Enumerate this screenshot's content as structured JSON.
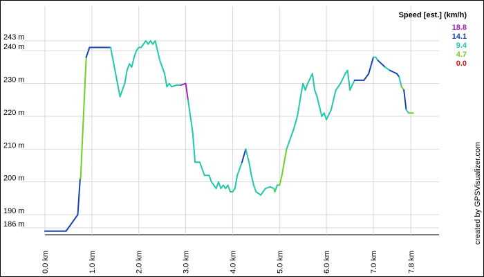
{
  "chart_data": {
    "type": "line",
    "title": "",
    "xlabel": "",
    "ylabel": "",
    "x_unit": "km",
    "y_unit": "m",
    "xlim": [
      0,
      8.4
    ],
    "ylim": [
      186,
      243
    ],
    "x_ticks": [
      {
        "value": 0.0,
        "label": "0.0 km"
      },
      {
        "value": 1.0,
        "label": "1.0 km"
      },
      {
        "value": 2.0,
        "label": "2.0 km"
      },
      {
        "value": 3.0,
        "label": "3.0 km"
      },
      {
        "value": 4.0,
        "label": "4.0 km"
      },
      {
        "value": 5.0,
        "label": "5.0 km"
      },
      {
        "value": 6.0,
        "label": "6.0 km"
      },
      {
        "value": 7.0,
        "label": "7.0 km"
      },
      {
        "value": 7.8,
        "label": "7.8 km"
      }
    ],
    "y_ticks": [
      {
        "value": 186,
        "label": "186 m"
      },
      {
        "value": 190,
        "label": "190 m"
      },
      {
        "value": 200,
        "label": "200 m"
      },
      {
        "value": 210,
        "label": "210 m"
      },
      {
        "value": 220,
        "label": "220 m"
      },
      {
        "value": 230,
        "label": "230 m"
      },
      {
        "value": 240,
        "label": "240 m"
      },
      {
        "value": 243,
        "label": "243 m"
      }
    ],
    "grid": true,
    "legend": {
      "title": "Speed [est.] (km/h)",
      "placement": "top-right",
      "entries": [
        {
          "label": "18.8",
          "color": "#a020c0"
        },
        {
          "label": "14.1",
          "color": "#1a40b0"
        },
        {
          "label": "9.4",
          "color": "#20c8a8"
        },
        {
          "label": "4.7",
          "color": "#70d020"
        },
        {
          "label": "0.0",
          "color": "#e01010"
        }
      ]
    },
    "credit": "created by GPSVisualizer.com",
    "series": [
      {
        "points": [
          [
            0.0,
            185,
            "#20c8a8"
          ],
          [
            0.45,
            185,
            "#1a40b0"
          ],
          [
            0.7,
            190,
            "#1a40b0"
          ],
          [
            0.75,
            201,
            "#1a40b0"
          ],
          [
            0.76,
            201,
            "#70d020"
          ],
          [
            0.88,
            238,
            "#70d020"
          ],
          [
            0.95,
            241,
            "#1a40b0"
          ],
          [
            1.1,
            241,
            "#1a40b0"
          ],
          [
            1.4,
            241,
            "#1a40b0"
          ],
          [
            1.6,
            226,
            "#20c8a8"
          ],
          [
            1.7,
            230,
            "#20c8a8"
          ],
          [
            1.75,
            234,
            "#20c8a8"
          ],
          [
            1.8,
            236,
            "#20c8a8"
          ],
          [
            1.85,
            235,
            "#20c8a8"
          ],
          [
            1.9,
            238,
            "#20c8a8"
          ],
          [
            1.95,
            240,
            "#20c8a8"
          ],
          [
            2.0,
            241,
            "#20c8a8"
          ],
          [
            2.05,
            241,
            "#20c8a8"
          ],
          [
            2.1,
            242,
            "#20c8a8"
          ],
          [
            2.15,
            243,
            "#20c8a8"
          ],
          [
            2.2,
            242,
            "#20c8a8"
          ],
          [
            2.25,
            243,
            "#20c8a8"
          ],
          [
            2.3,
            242,
            "#20c8a8"
          ],
          [
            2.35,
            243,
            "#20c8a8"
          ],
          [
            2.4,
            240,
            "#20c8a8"
          ],
          [
            2.45,
            237,
            "#20c8a8"
          ],
          [
            2.5,
            235,
            "#20c8a8"
          ],
          [
            2.55,
            233,
            "#20c8a8"
          ],
          [
            2.6,
            229,
            "#20c8a8"
          ],
          [
            2.65,
            230,
            "#20c8a8"
          ],
          [
            2.7,
            229,
            "#20c8a8"
          ],
          [
            2.8,
            229.5,
            "#20c8a8"
          ],
          [
            2.9,
            229.5,
            "#20c8a8"
          ],
          [
            3.0,
            230,
            "#a020c0"
          ],
          [
            3.05,
            225,
            "#a020c0"
          ],
          [
            3.15,
            215,
            "#20c8a8"
          ],
          [
            3.2,
            206,
            "#20c8a8"
          ],
          [
            3.3,
            206,
            "#20c8a8"
          ],
          [
            3.4,
            202,
            "#20c8a8"
          ],
          [
            3.5,
            202,
            "#20c8a8"
          ],
          [
            3.55,
            200,
            "#20c8a8"
          ],
          [
            3.6,
            199,
            "#20c8a8"
          ],
          [
            3.65,
            198,
            "#20c8a8"
          ],
          [
            3.7,
            200,
            "#20c8a8"
          ],
          [
            3.75,
            198,
            "#20c8a8"
          ],
          [
            3.8,
            199,
            "#20c8a8"
          ],
          [
            3.85,
            198,
            "#20c8a8"
          ],
          [
            3.9,
            199,
            "#20c8a8"
          ],
          [
            3.95,
            197,
            "#20c8a8"
          ],
          [
            4.0,
            197,
            "#20c8a8"
          ],
          [
            4.05,
            198,
            "#20c8a8"
          ],
          [
            4.1,
            202,
            "#20c8a8"
          ],
          [
            4.2,
            206,
            "#20c8a8"
          ],
          [
            4.28,
            210,
            "#1a40b0"
          ],
          [
            4.35,
            206,
            "#20c8a8"
          ],
          [
            4.4,
            202,
            "#20c8a8"
          ],
          [
            4.45,
            199,
            "#20c8a8"
          ],
          [
            4.5,
            197,
            "#20c8a8"
          ],
          [
            4.6,
            196,
            "#20c8a8"
          ],
          [
            4.7,
            198,
            "#20c8a8"
          ],
          [
            4.8,
            198.5,
            "#20c8a8"
          ],
          [
            4.88,
            198,
            "#20c8a8"
          ],
          [
            4.9,
            197,
            "#70d020"
          ],
          [
            4.95,
            199,
            "#20c8a8"
          ],
          [
            5.0,
            199,
            "#20c8a8"
          ],
          [
            5.05,
            202,
            "#70d020"
          ],
          [
            5.15,
            210,
            "#70d020"
          ],
          [
            5.2,
            212,
            "#20c8a8"
          ],
          [
            5.3,
            216,
            "#20c8a8"
          ],
          [
            5.38,
            220,
            "#20c8a8"
          ],
          [
            5.45,
            226,
            "#20c8a8"
          ],
          [
            5.5,
            230,
            "#20c8a8"
          ],
          [
            5.55,
            228,
            "#20c8a8"
          ],
          [
            5.6,
            230,
            "#20c8a8"
          ],
          [
            5.7,
            233,
            "#20c8a8"
          ],
          [
            5.75,
            228,
            "#20c8a8"
          ],
          [
            5.8,
            226,
            "#20c8a8"
          ],
          [
            5.85,
            223,
            "#20c8a8"
          ],
          [
            5.9,
            220,
            "#20c8a8"
          ],
          [
            5.95,
            221,
            "#20c8a8"
          ],
          [
            6.0,
            219,
            "#20c8a8"
          ],
          [
            6.1,
            222,
            "#20c8a8"
          ],
          [
            6.2,
            228,
            "#20c8a8"
          ],
          [
            6.3,
            230,
            "#20c8a8"
          ],
          [
            6.4,
            233,
            "#20c8a8"
          ],
          [
            6.45,
            234,
            "#20c8a8"
          ],
          [
            6.5,
            228,
            "#20c8a8"
          ],
          [
            6.6,
            231,
            "#20c8a8"
          ],
          [
            6.8,
            231,
            "#1a40b0"
          ],
          [
            6.9,
            233,
            "#1a40b0"
          ],
          [
            7.0,
            238,
            "#1a40b0"
          ],
          [
            7.05,
            238,
            "#20c8a8"
          ],
          [
            7.1,
            237,
            "#20c8a8"
          ],
          [
            7.25,
            235,
            "#1a40b0"
          ],
          [
            7.35,
            234,
            "#20c8a8"
          ],
          [
            7.5,
            233,
            "#1a40b0"
          ],
          [
            7.55,
            232,
            "#1a40b0"
          ],
          [
            7.6,
            229,
            "#20c8a8"
          ],
          [
            7.65,
            228,
            "#70d020"
          ],
          [
            7.7,
            222,
            "#1a40b0"
          ],
          [
            7.75,
            221,
            "#20c8a8"
          ],
          [
            7.85,
            221,
            "#70d020"
          ]
        ]
      }
    ]
  }
}
